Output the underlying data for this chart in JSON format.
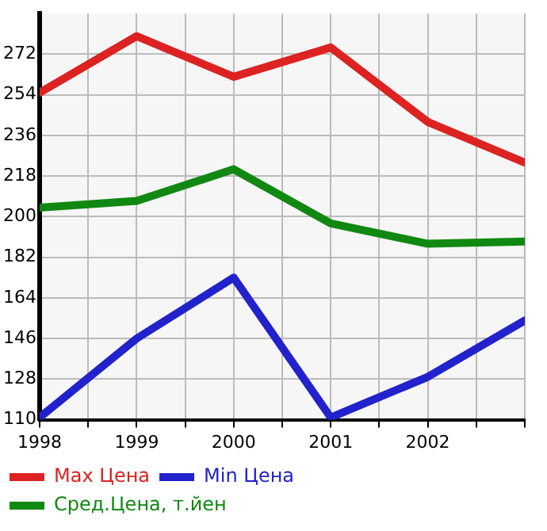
{
  "chart_data": {
    "type": "line",
    "x": [
      1998,
      1999,
      2000,
      2001,
      2002,
      2003
    ],
    "xlim": [
      1998,
      2003
    ],
    "xticks": [
      1998,
      {
        "value": 1998.5,
        "label": null
      },
      1999,
      {
        "value": 1999.5,
        "label": null
      },
      2000,
      {
        "value": 2000.5,
        "label": null
      },
      2001,
      {
        "value": 2001.5,
        "label": null
      },
      2002,
      {
        "value": 2002.5,
        "label": null
      },
      {
        "value": 2003,
        "label": null
      }
    ],
    "ylim": [
      110,
      290
    ],
    "yticks": [
      110,
      128,
      146,
      164,
      182,
      200,
      218,
      236,
      254,
      272
    ],
    "grid": true,
    "legend": "bottom",
    "marker": "none",
    "line_style": "solid",
    "series": [
      {
        "name": "Max Цена",
        "color": "#dd2222",
        "values": [
          255,
          280,
          262,
          275,
          242,
          224
        ]
      },
      {
        "name": "Min Цена",
        "color": "#2222cc",
        "values": [
          111,
          146,
          173,
          111,
          129,
          154
        ]
      },
      {
        "name": "Сред.Цена, т.йен",
        "color": "#118811",
        "values": [
          204,
          207,
          221,
          197,
          188,
          189
        ]
      }
    ]
  }
}
